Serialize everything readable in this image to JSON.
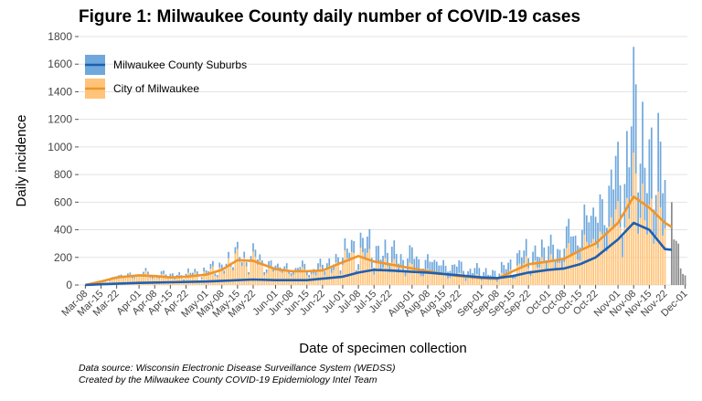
{
  "title": "Figure 1: Milwaukee County daily number of COVID-19 cases",
  "footnotes": {
    "source": "Data source: Wisconsin Electronic Disease Surveillance System (WEDSS)",
    "credit": "Created by the Milwaukee County COVID-19 Epidemiology Intel Team"
  },
  "colors": {
    "suburbs_bar": "#6fa8dc",
    "suburbs_line": "#1f5fb0",
    "city_bar": "#ffc47a",
    "city_line": "#f0952a",
    "recent_bar": "#8a8a8a",
    "grid": "#e3e3e3"
  },
  "chart_data": {
    "type": "bar",
    "title": "Figure 1: Milwaukee County daily number of COVID-19 cases",
    "xlabel": "Date of specimen collection",
    "ylabel": "Daily incidence",
    "ylim": [
      0,
      1800
    ],
    "yticks": [
      0,
      200,
      400,
      600,
      800,
      1000,
      1200,
      1400,
      1600,
      1800
    ],
    "xlim": [
      "2020-03-05",
      "2020-12-02"
    ],
    "xtick_labels": [
      "Mar-08",
      "Mar-15",
      "Mar-22",
      "Apr-01",
      "Apr-08",
      "Apr-15",
      "Apr-22",
      "May-01",
      "May-08",
      "May-15",
      "May-22",
      "Jun-01",
      "Jun-08",
      "Jun-15",
      "Jun-22",
      "Jul-01",
      "Jul-08",
      "Jul-15",
      "Jul-22",
      "Aug-01",
      "Aug-08",
      "Aug-15",
      "Aug-22",
      "Sep-01",
      "Sep-08",
      "Sep-15",
      "Sep-22",
      "Oct-01",
      "Oct-08",
      "Oct-15",
      "Oct-22",
      "Nov-01",
      "Nov-08",
      "Nov-15",
      "Nov-22",
      "Dec-01"
    ],
    "xtick_dates": [
      "2020-03-08",
      "2020-03-15",
      "2020-03-22",
      "2020-04-01",
      "2020-04-08",
      "2020-04-15",
      "2020-04-22",
      "2020-05-01",
      "2020-05-08",
      "2020-05-15",
      "2020-05-22",
      "2020-06-01",
      "2020-06-08",
      "2020-06-15",
      "2020-06-22",
      "2020-07-01",
      "2020-07-08",
      "2020-07-15",
      "2020-07-22",
      "2020-08-01",
      "2020-08-08",
      "2020-08-15",
      "2020-08-22",
      "2020-09-01",
      "2020-09-08",
      "2020-09-15",
      "2020-09-22",
      "2020-10-01",
      "2020-10-08",
      "2020-10-15",
      "2020-10-22",
      "2020-11-01",
      "2020-11-08",
      "2020-11-15",
      "2020-11-22",
      "2020-12-01"
    ],
    "grid": true,
    "legend_position": "top-left",
    "stacked": true,
    "series": [
      {
        "name": "Milwaukee County Suburbs",
        "display": "stacked-bar-with-average-line",
        "points": [
          [
            "2020-03-15",
            5
          ],
          [
            "2020-04-01",
            15
          ],
          [
            "2020-04-15",
            20
          ],
          [
            "2020-05-01",
            25
          ],
          [
            "2020-05-15",
            40
          ],
          [
            "2020-05-22",
            45
          ],
          [
            "2020-06-01",
            35
          ],
          [
            "2020-06-15",
            35
          ],
          [
            "2020-07-01",
            60
          ],
          [
            "2020-07-08",
            90
          ],
          [
            "2020-07-15",
            110
          ],
          [
            "2020-07-22",
            105
          ],
          [
            "2020-08-01",
            95
          ],
          [
            "2020-08-08",
            90
          ],
          [
            "2020-08-22",
            70
          ],
          [
            "2020-09-01",
            55
          ],
          [
            "2020-09-08",
            50
          ],
          [
            "2020-09-15",
            70
          ],
          [
            "2020-09-22",
            95
          ],
          [
            "2020-10-01",
            110
          ],
          [
            "2020-10-08",
            120
          ],
          [
            "2020-10-15",
            160
          ],
          [
            "2020-10-22",
            230
          ],
          [
            "2020-11-01",
            340
          ],
          [
            "2020-11-08",
            560
          ],
          [
            "2020-11-15",
            460
          ],
          [
            "2020-11-22",
            380
          ]
        ],
        "average": [
          [
            "2020-03-08",
            0
          ],
          [
            "2020-03-15",
            5
          ],
          [
            "2020-04-01",
            15
          ],
          [
            "2020-04-15",
            20
          ],
          [
            "2020-05-01",
            25
          ],
          [
            "2020-05-15",
            35
          ],
          [
            "2020-05-22",
            40
          ],
          [
            "2020-06-01",
            35
          ],
          [
            "2020-06-15",
            35
          ],
          [
            "2020-07-01",
            60
          ],
          [
            "2020-07-08",
            90
          ],
          [
            "2020-07-15",
            110
          ],
          [
            "2020-07-22",
            105
          ],
          [
            "2020-08-01",
            95
          ],
          [
            "2020-08-08",
            90
          ],
          [
            "2020-08-22",
            70
          ],
          [
            "2020-09-01",
            55
          ],
          [
            "2020-09-08",
            50
          ],
          [
            "2020-09-15",
            65
          ],
          [
            "2020-09-22",
            90
          ],
          [
            "2020-10-01",
            110
          ],
          [
            "2020-10-08",
            120
          ],
          [
            "2020-10-15",
            150
          ],
          [
            "2020-10-22",
            200
          ],
          [
            "2020-11-01",
            330
          ],
          [
            "2020-11-08",
            450
          ],
          [
            "2020-11-15",
            400
          ],
          [
            "2020-11-22",
            260
          ],
          [
            "2020-11-25",
            255
          ]
        ]
      },
      {
        "name": "City of Milwaukee",
        "display": "stacked-bar-with-average-line",
        "points": [
          [
            "2020-03-15",
            20
          ],
          [
            "2020-03-22",
            55
          ],
          [
            "2020-04-01",
            75
          ],
          [
            "2020-04-08",
            70
          ],
          [
            "2020-04-15",
            60
          ],
          [
            "2020-04-22",
            65
          ],
          [
            "2020-05-01",
            85
          ],
          [
            "2020-05-08",
            120
          ],
          [
            "2020-05-15",
            200
          ],
          [
            "2020-05-22",
            180
          ],
          [
            "2020-06-01",
            110
          ],
          [
            "2020-06-08",
            100
          ],
          [
            "2020-06-15",
            95
          ],
          [
            "2020-06-22",
            100
          ],
          [
            "2020-07-01",
            170
          ],
          [
            "2020-07-08",
            240
          ],
          [
            "2020-07-15",
            170
          ],
          [
            "2020-07-22",
            150
          ],
          [
            "2020-08-01",
            120
          ],
          [
            "2020-08-08",
            100
          ],
          [
            "2020-08-15",
            80
          ],
          [
            "2020-08-22",
            70
          ],
          [
            "2020-09-01",
            55
          ],
          [
            "2020-09-08",
            45
          ],
          [
            "2020-09-15",
            110
          ],
          [
            "2020-09-22",
            160
          ],
          [
            "2020-10-01",
            170
          ],
          [
            "2020-10-08",
            200
          ],
          [
            "2020-10-15",
            290
          ],
          [
            "2020-10-22",
            330
          ],
          [
            "2020-11-01",
            480
          ],
          [
            "2020-11-08",
            700
          ],
          [
            "2020-11-15",
            560
          ],
          [
            "2020-11-22",
            440
          ]
        ],
        "average": [
          [
            "2020-03-08",
            0
          ],
          [
            "2020-03-15",
            25
          ],
          [
            "2020-03-22",
            55
          ],
          [
            "2020-04-01",
            70
          ],
          [
            "2020-04-08",
            65
          ],
          [
            "2020-04-15",
            55
          ],
          [
            "2020-04-22",
            60
          ],
          [
            "2020-05-01",
            75
          ],
          [
            "2020-05-08",
            110
          ],
          [
            "2020-05-15",
            180
          ],
          [
            "2020-05-22",
            175
          ],
          [
            "2020-06-01",
            115
          ],
          [
            "2020-06-08",
            100
          ],
          [
            "2020-06-15",
            100
          ],
          [
            "2020-06-22",
            105
          ],
          [
            "2020-07-01",
            165
          ],
          [
            "2020-07-08",
            210
          ],
          [
            "2020-07-15",
            170
          ],
          [
            "2020-07-22",
            150
          ],
          [
            "2020-08-01",
            120
          ],
          [
            "2020-08-08",
            100
          ],
          [
            "2020-08-15",
            80
          ],
          [
            "2020-08-22",
            65
          ],
          [
            "2020-09-01",
            50
          ],
          [
            "2020-09-08",
            45
          ],
          [
            "2020-09-15",
            100
          ],
          [
            "2020-09-22",
            150
          ],
          [
            "2020-10-01",
            170
          ],
          [
            "2020-10-08",
            190
          ],
          [
            "2020-10-15",
            250
          ],
          [
            "2020-10-22",
            300
          ],
          [
            "2020-11-01",
            450
          ],
          [
            "2020-11-08",
            640
          ],
          [
            "2020-11-15",
            560
          ],
          [
            "2020-11-22",
            450
          ],
          [
            "2020-11-25",
            420
          ]
        ]
      }
    ],
    "recent_incomplete": [
      [
        "2020-11-25",
        600
      ],
      [
        "2020-11-26",
        330
      ],
      [
        "2020-11-27",
        320
      ],
      [
        "2020-11-28",
        300
      ],
      [
        "2020-11-29",
        120
      ],
      [
        "2020-11-30",
        80
      ],
      [
        "2020-12-01",
        70
      ]
    ]
  }
}
